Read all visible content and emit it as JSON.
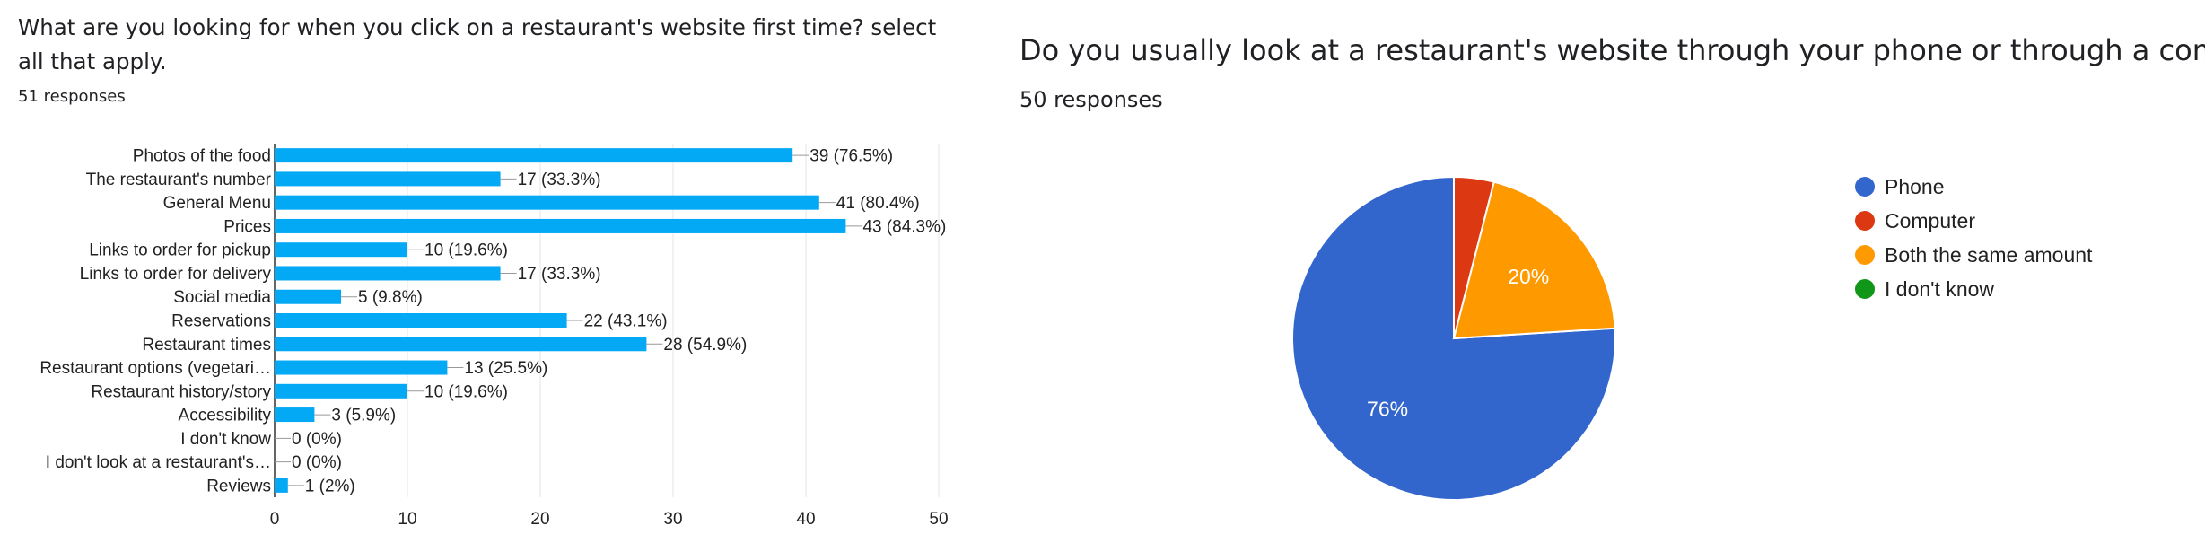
{
  "left": {
    "title": "What are you looking for when you click on a restaurant's website first time? select all that apply.",
    "responses": "51 responses"
  },
  "right": {
    "title": "Do you usually look at a restaurant's website through your phone or through a computer?",
    "responses": "50 responses"
  },
  "chart_data": [
    {
      "type": "bar",
      "orientation": "horizontal",
      "categories": [
        "Photos of the food",
        "The restaurant's number",
        "General Menu",
        "Prices",
        "Links to order for pickup",
        "Links to order for delivery",
        "Social media",
        "Reservations",
        "Restaurant times",
        "Restaurant options (vegetari…",
        "Restaurant history/story",
        "Accessibility",
        "I don't know",
        "I don't look at a restaurant's…",
        "Reviews"
      ],
      "values": [
        39,
        17,
        41,
        43,
        10,
        17,
        5,
        22,
        28,
        13,
        10,
        3,
        0,
        0,
        1
      ],
      "data_labels": [
        "39 (76.5%)",
        "17 (33.3%)",
        "41 (80.4%)",
        "43 (84.3%)",
        "10 (19.6%)",
        "17 (33.3%)",
        "5 (9.8%)",
        "22 (43.1%)",
        "28 (54.9%)",
        "13 (25.5%)",
        "10 (19.6%)",
        "3 (5.9%)",
        "0 (0%)",
        "0 (0%)",
        "1 (2%)"
      ],
      "xlim": [
        0,
        50
      ],
      "xticks": [
        0,
        10,
        20,
        30,
        40,
        50
      ],
      "grid": true,
      "color": "#03a9f4"
    },
    {
      "type": "pie",
      "labels": [
        "Phone",
        "Computer",
        "Both the same amount",
        "I don't know"
      ],
      "values": [
        76,
        4,
        20,
        0
      ],
      "slice_labels": [
        "76%",
        "",
        "20%",
        ""
      ],
      "colors": [
        "#3366cc",
        "#dc3912",
        "#ff9900",
        "#109618"
      ],
      "legend": "right"
    }
  ]
}
